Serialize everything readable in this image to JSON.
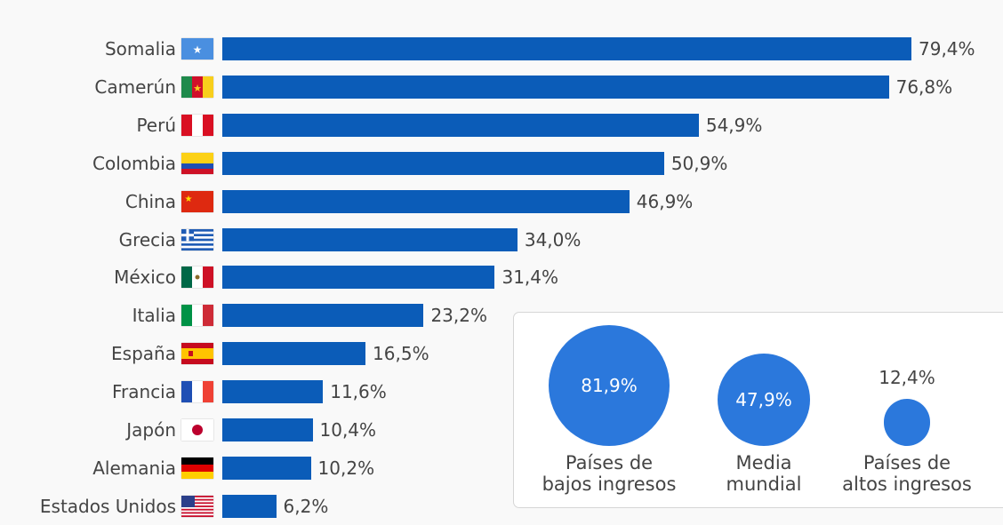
{
  "chart_data": {
    "type": "bar",
    "orientation": "horizontal",
    "categories": [
      "Somalia",
      "Camerún",
      "Perú",
      "Colombia",
      "China",
      "Grecia",
      "México",
      "Italia",
      "España",
      "Francia",
      "Japón",
      "Alemania",
      "Estados Unidos"
    ],
    "values": [
      79.4,
      76.8,
      54.9,
      50.9,
      46.9,
      34.0,
      31.4,
      23.2,
      16.5,
      11.6,
      10.4,
      10.2,
      6.2
    ],
    "value_labels": [
      "79,4%",
      "76,8%",
      "54,9%",
      "50,9%",
      "46,9%",
      "34,0%",
      "31,4%",
      "23,2%",
      "16,5%",
      "11,6%",
      "10,4%",
      "10,2%",
      "6,2%"
    ],
    "flag_icons": [
      "somalia-flag-icon",
      "cameroon-flag-icon",
      "peru-flag-icon",
      "colombia-flag-icon",
      "china-flag-icon",
      "greece-flag-icon",
      "mexico-flag-icon",
      "italy-flag-icon",
      "spain-flag-icon",
      "france-flag-icon",
      "japan-flag-icon",
      "germany-flag-icon",
      "usa-flag-icon"
    ],
    "bar_color": "#0b5cb8",
    "grid": false,
    "inset": {
      "type": "bubble",
      "items": [
        {
          "label_line1": "Países de",
          "label_line2": "bajos ingresos",
          "value": 81.9,
          "value_label": "81,9%"
        },
        {
          "label_line1": "Media",
          "label_line2": "mundial",
          "value": 47.9,
          "value_label": "47,9%"
        },
        {
          "label_line1": "Países de",
          "label_line2": "altos ingresos",
          "value": 12.4,
          "value_label": "12,4%"
        }
      ],
      "circle_color": "#2b78dc"
    }
  }
}
